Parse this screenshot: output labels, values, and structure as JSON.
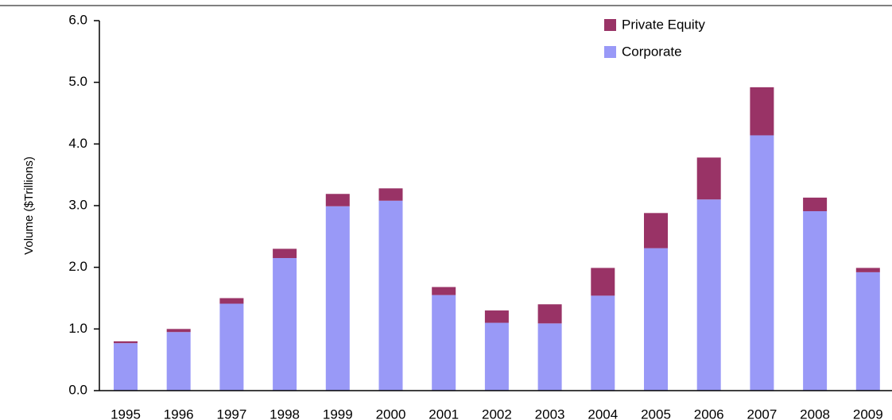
{
  "chart_data": {
    "type": "stacked_bar",
    "y_label": "Volume ($Trillions)",
    "categories": [
      "1995",
      "1996",
      "1997",
      "1998",
      "1999",
      "2000",
      "2001",
      "2002",
      "2003",
      "2004",
      "2005",
      "2006",
      "2007",
      "2008",
      "2009"
    ],
    "series": [
      {
        "name": "Corporate",
        "color": "#9999f7",
        "values": [
          0.77,
          0.95,
          1.41,
          2.15,
          2.99,
          3.08,
          1.55,
          1.1,
          1.09,
          1.54,
          2.31,
          3.1,
          4.14,
          2.91,
          1.92
        ]
      },
      {
        "name": "Private Equity",
        "color": "#993366",
        "values": [
          0.03,
          0.05,
          0.09,
          0.15,
          0.2,
          0.2,
          0.13,
          0.2,
          0.31,
          0.45,
          0.57,
          0.68,
          0.78,
          0.22,
          0.07
        ]
      }
    ],
    "ylim": [
      0,
      6
    ],
    "yticks": [
      {
        "value": 0,
        "label": "0.0"
      },
      {
        "value": 1,
        "label": "1.0"
      },
      {
        "value": 2,
        "label": "2.0"
      },
      {
        "value": 3,
        "label": "3.0"
      },
      {
        "value": 4,
        "label": "4.0"
      },
      {
        "value": 5,
        "label": "5.0"
      },
      {
        "value": 6,
        "label": "6.0"
      }
    ]
  }
}
